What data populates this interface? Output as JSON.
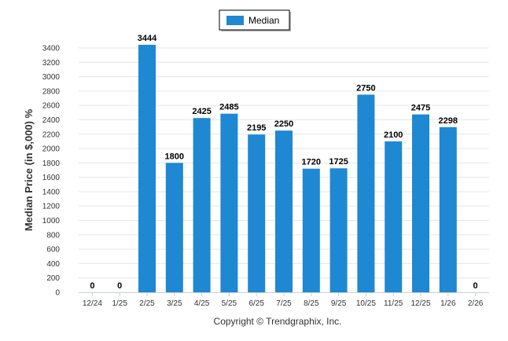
{
  "chart_data": {
    "type": "bar",
    "categories": [
      "12/24",
      "1/25",
      "2/25",
      "3/25",
      "4/25",
      "5/25",
      "6/25",
      "7/25",
      "8/25",
      "9/25",
      "10/25",
      "11/25",
      "12/25",
      "1/26",
      "2/26"
    ],
    "series": [
      {
        "name": "Median",
        "values": [
          0,
          0,
          3444,
          1800,
          2425,
          2485,
          2195,
          2250,
          1720,
          1725,
          2750,
          2100,
          2475,
          2298,
          0
        ]
      }
    ],
    "data_labels": [
      "0",
      "0",
      "3444",
      "1800",
      "2425",
      "2485",
      "2195",
      "2250",
      "1720",
      "1725",
      "2750",
      "2100",
      "2475",
      "2298",
      "0"
    ],
    "ylabel": "Median Price (in $,000) %",
    "ylim": [
      0,
      3400
    ],
    "yticks": [
      0,
      200,
      400,
      600,
      800,
      1000,
      1200,
      1400,
      1600,
      1800,
      2000,
      2200,
      2400,
      2600,
      2800,
      3000,
      3200,
      3400
    ],
    "grid": true,
    "legend_position": "top-center",
    "colors": {
      "bar": "#1E88D2",
      "grid": "#E6E6E6",
      "axis": "#C0D0E0"
    }
  },
  "footer": {
    "copyright": "Copyright © Trendgraphix, Inc."
  }
}
